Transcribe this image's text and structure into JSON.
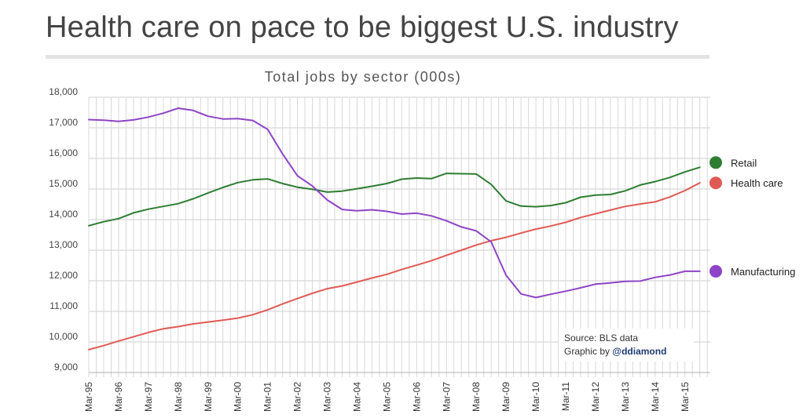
{
  "headline": "Health care on pace to be biggest U.S. industry",
  "source": {
    "line1": "Source: BLS data",
    "graphic_by": "Graphic by",
    "handle": "@ddiamond"
  },
  "chart_data": {
    "type": "line",
    "title": "Total jobs by sector (000s)",
    "xlabel": "",
    "ylabel": "",
    "ylim": [
      9000,
      18000
    ],
    "yticks": [
      9000,
      10000,
      11000,
      12000,
      13000,
      14000,
      15000,
      16000,
      17000,
      18000
    ],
    "ytick_labels": [
      "9,000",
      "10,000",
      "11,000",
      "12,000",
      "13,000",
      "14,000",
      "15,000",
      "16,000",
      "17,000",
      "18,000"
    ],
    "x_range": [
      1995,
      2015.85
    ],
    "xtick_labels": [
      "Mar-95",
      "Mar-96",
      "Mar-97",
      "Mar-98",
      "Mar-99",
      "Mar-00",
      "Mar-01",
      "Mar-02",
      "Mar-03",
      "Mar-04",
      "Mar-05",
      "Mar-06",
      "Mar-07",
      "Mar-08",
      "Mar-09",
      "Mar-10",
      "Mar-11",
      "Mar-12",
      "Mar-13",
      "Mar-14",
      "Mar-15"
    ],
    "xtick_positions": [
      1995,
      1996,
      1997,
      1998,
      1999,
      2000,
      2001,
      2002,
      2003,
      2004,
      2005,
      2006,
      2007,
      2008,
      2009,
      2010,
      2011,
      2012,
      2013,
      2014,
      2015
    ],
    "legend_position": "right",
    "series": [
      {
        "name": "Retail",
        "color": "#2e7d32",
        "x": [
          1995,
          1995.5,
          1996,
          1996.5,
          1997,
          1997.5,
          1998,
          1998.5,
          1999,
          1999.5,
          2000,
          2000.5,
          2001,
          2001.5,
          2002,
          2002.5,
          2003,
          2003.5,
          2004,
          2004.5,
          2005,
          2005.5,
          2006,
          2006.5,
          2007,
          2007.5,
          2008,
          2008.5,
          2009,
          2009.5,
          2010,
          2010.5,
          2011,
          2011.5,
          2012,
          2012.5,
          2013,
          2013.5,
          2014,
          2014.5,
          2015,
          2015.5
        ],
        "values": [
          13800,
          13930,
          14030,
          14220,
          14340,
          14430,
          14520,
          14680,
          14870,
          15050,
          15210,
          15300,
          15330,
          15180,
          15060,
          14990,
          14900,
          14930,
          15010,
          15090,
          15180,
          15320,
          15360,
          15340,
          15510,
          15500,
          15490,
          15150,
          14610,
          14440,
          14420,
          14460,
          14550,
          14730,
          14800,
          14820,
          14940,
          15130,
          15240,
          15380,
          15560,
          15710
        ]
      },
      {
        "name": "Health care",
        "color": "#e05a55",
        "x": [
          1995,
          1995.5,
          1996,
          1996.5,
          1997,
          1997.5,
          1998,
          1998.5,
          1999,
          1999.5,
          2000,
          2000.5,
          2001,
          2001.5,
          2002,
          2002.5,
          2003,
          2003.5,
          2004,
          2004.5,
          2005,
          2005.5,
          2006,
          2006.5,
          2007,
          2007.5,
          2008,
          2008.5,
          2009,
          2009.5,
          2010,
          2010.5,
          2011,
          2011.5,
          2012,
          2012.5,
          2013,
          2013.5,
          2014,
          2014.5,
          2015,
          2015.5
        ],
        "values": [
          9750,
          9880,
          10030,
          10170,
          10310,
          10430,
          10500,
          10590,
          10650,
          10710,
          10780,
          10890,
          11050,
          11240,
          11420,
          11590,
          11740,
          11830,
          11960,
          12090,
          12210,
          12370,
          12510,
          12660,
          12830,
          13000,
          13170,
          13310,
          13420,
          13560,
          13690,
          13790,
          13910,
          14070,
          14190,
          14310,
          14430,
          14510,
          14580,
          14740,
          14950,
          15200
        ]
      },
      {
        "name": "Manufacturing",
        "color": "#8e44c7",
        "x": [
          1995,
          1995.5,
          1996,
          1996.5,
          1997,
          1997.5,
          1998,
          1998.5,
          1999,
          1999.5,
          2000,
          2000.5,
          2001,
          2001.5,
          2002,
          2002.5,
          2003,
          2003.5,
          2004,
          2004.5,
          2005,
          2005.5,
          2006,
          2006.5,
          2007,
          2007.5,
          2008,
          2008.5,
          2009,
          2009.5,
          2010,
          2010.5,
          2011,
          2011.5,
          2012,
          2012.5,
          2013,
          2013.5,
          2014,
          2014.5,
          2015,
          2015.5
        ],
        "values": [
          17270,
          17250,
          17210,
          17260,
          17350,
          17480,
          17640,
          17570,
          17380,
          17290,
          17300,
          17240,
          16950,
          16150,
          15430,
          15100,
          14640,
          14330,
          14290,
          14320,
          14270,
          14180,
          14210,
          14120,
          13960,
          13760,
          13630,
          13270,
          12180,
          11570,
          11450,
          11560,
          11660,
          11770,
          11890,
          11930,
          11980,
          11990,
          12110,
          12190,
          12310,
          12310
        ]
      }
    ]
  }
}
